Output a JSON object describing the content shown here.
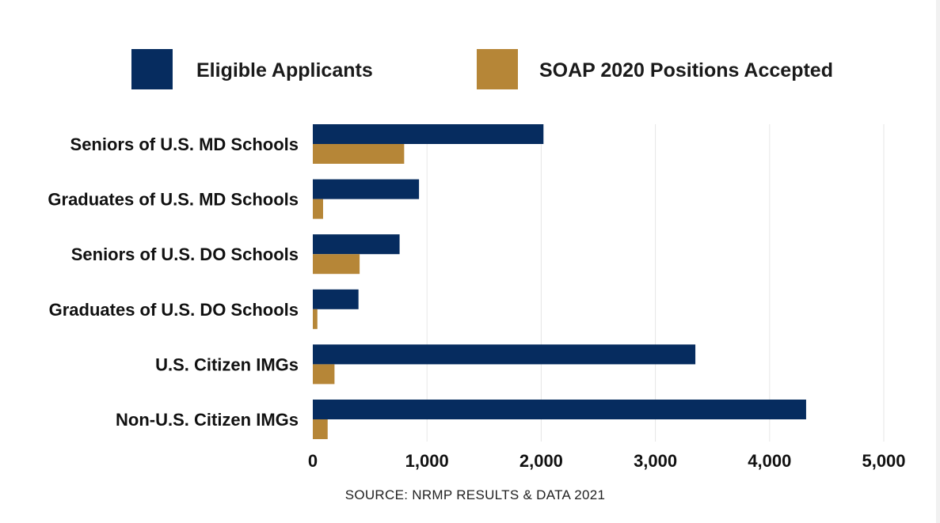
{
  "chart_data": {
    "type": "bar",
    "orientation": "horizontal",
    "categories": [
      "Seniors of U.S. MD Schools",
      "Graduates of U.S. MD Schools",
      "Seniors of U.S. DO Schools",
      "Graduates of U.S. DO Schools",
      "U.S. Citizen IMGs",
      "Non-U.S. Citizen IMGs"
    ],
    "series": [
      {
        "name": "Eligible Applicants",
        "color": "#062c5f",
        "values": [
          2020,
          930,
          760,
          400,
          3350,
          4320
        ]
      },
      {
        "name": "SOAP 2020 Positions Accepted",
        "color": "#b68637",
        "values": [
          800,
          90,
          410,
          40,
          190,
          130
        ]
      }
    ],
    "xlim": [
      0,
      5000
    ],
    "xticks": [
      0,
      1000,
      2000,
      3000,
      4000,
      5000
    ],
    "xtick_labels": [
      "0",
      "1,000",
      "2,000",
      "3,000",
      "4,000",
      "5,000"
    ],
    "grid": true,
    "legend_position": "top",
    "title": "",
    "xlabel": "",
    "ylabel": "",
    "source": "SOURCE: NRMP RESULTS & DATA 2021"
  }
}
